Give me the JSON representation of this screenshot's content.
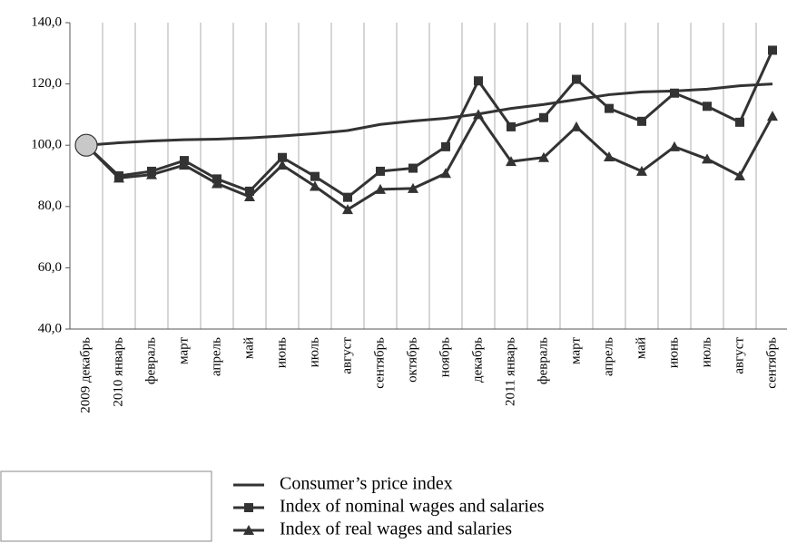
{
  "chart_data": {
    "type": "line",
    "categories": [
      "2009 декабрь",
      "2010 январь",
      "февраль",
      "март",
      "апрель",
      "май",
      "июнь",
      "июль",
      "август",
      "сентябрь",
      "октябрь",
      "ноябрь",
      "декабрь",
      "2011 январь",
      "февраль",
      "март",
      "апрель",
      "май",
      "июнь",
      "июль",
      "август",
      "сентябрь"
    ],
    "series": [
      {
        "name": "Consumer’s price index",
        "color": "#333333",
        "marker": "none",
        "values": [
          100,
          100.8,
          101.4,
          101.8,
          102,
          102.4,
          103,
          103.8,
          104.8,
          106.8,
          107.9,
          108.8,
          110.2,
          112,
          113.3,
          114.9,
          116.5,
          117.4,
          117.7,
          118.3,
          119.4,
          120
        ]
      },
      {
        "name": "Index of nominal wages and salaries",
        "color": "#333333",
        "marker": "square",
        "values": [
          100,
          90,
          91.5,
          95,
          89,
          85,
          96,
          89.8,
          83,
          91.5,
          92.5,
          99.5,
          121,
          106,
          109,
          121.5,
          112,
          107.8,
          117,
          112.7,
          107.5,
          131
        ]
      },
      {
        "name": "Index of real wages and salaries",
        "color": "#333333",
        "marker": "triangle",
        "values": [
          100,
          89.3,
          90.4,
          93.5,
          87.5,
          83.2,
          93.5,
          86.6,
          79,
          85.6,
          85.9,
          90.8,
          110,
          94.7,
          96,
          106,
          96.2,
          91.5,
          99.5,
          95.5,
          90,
          109.5
        ]
      }
    ],
    "ylim": [
      40,
      140
    ],
    "yticks": [
      {
        "value": 40,
        "label": "40,0"
      },
      {
        "value": 60,
        "label": "60,0"
      },
      {
        "value": 80,
        "label": "80,0"
      },
      {
        "value": 100,
        "label": "100,0"
      },
      {
        "value": 120,
        "label": "120,0"
      },
      {
        "value": 140,
        "label": "140,0"
      }
    ],
    "grid": false,
    "legend": "bottom"
  }
}
